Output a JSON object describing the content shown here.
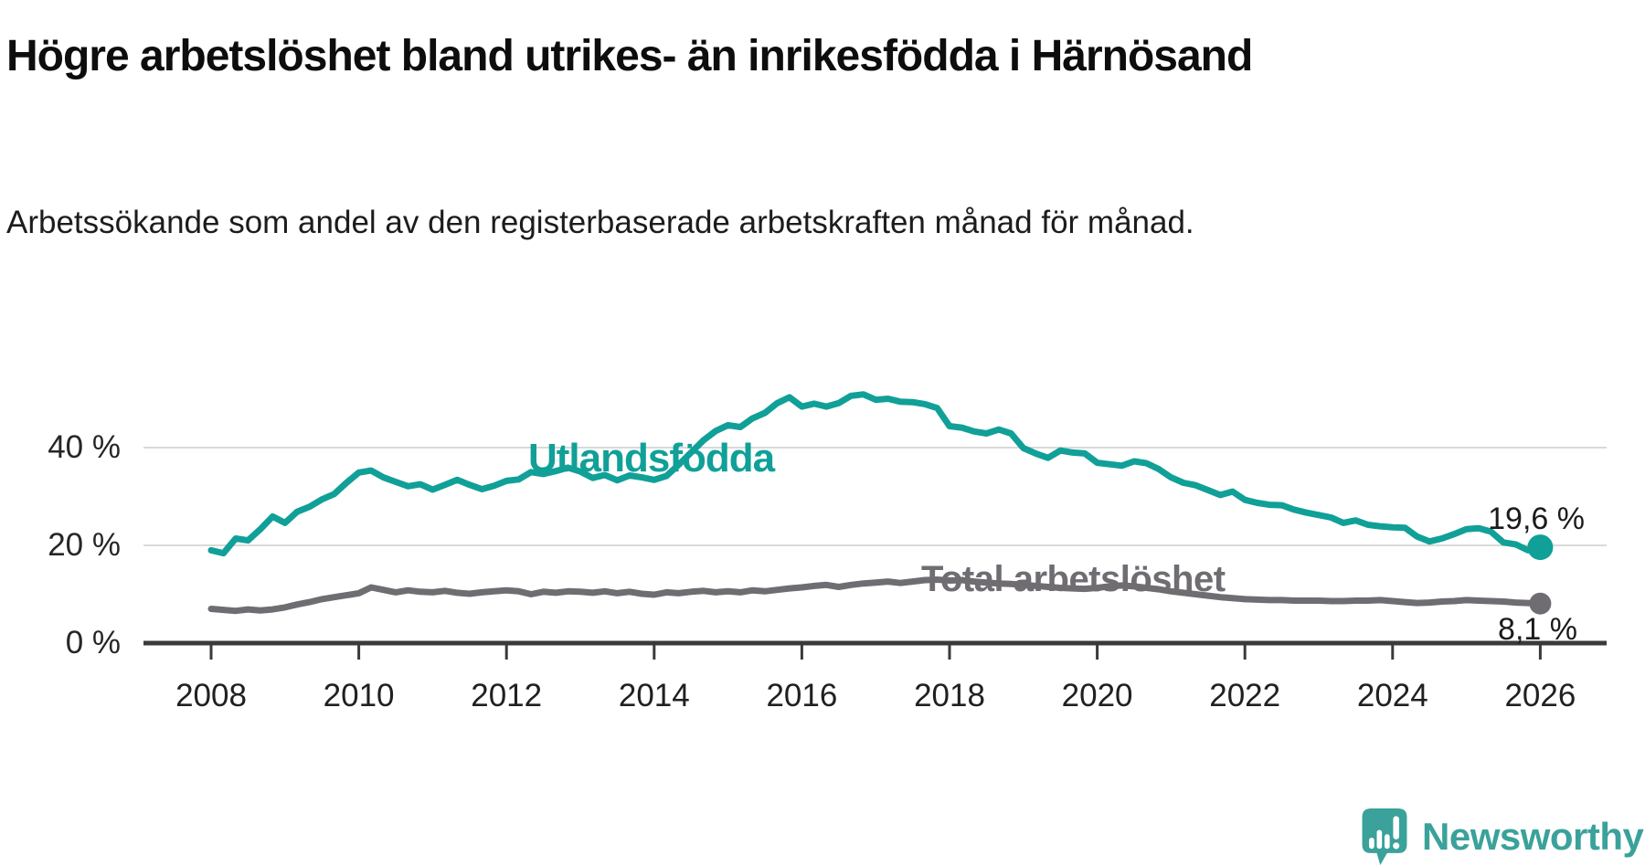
{
  "header": {
    "title": "Högre arbetslöshet bland utrikes- än inrikesfödda i Härnösand",
    "subtitle": "Arbetssökande som andel av den registerbaserade arbetskraften månad för månad."
  },
  "chart_data": {
    "type": "line",
    "title": "Högre arbetslöshet bland utrikes- än inrikesfödda i Härnösand",
    "xlabel": "",
    "ylabel": "%",
    "xlim": [
      2008,
      2026
    ],
    "ylim": [
      0,
      55
    ],
    "grid": true,
    "legend_position": "inline-labels-on-chart",
    "x_start_year": 2008,
    "x_step_years": 0.1666667,
    "x_axis": {
      "tick_years": [
        2008,
        2010,
        2012,
        2014,
        2016,
        2018,
        2020,
        2022,
        2024,
        2026
      ],
      "tick_labels": [
        "2008",
        "2010",
        "2012",
        "2014",
        "2016",
        "2018",
        "2020",
        "2022",
        "2024",
        "2026"
      ]
    },
    "y_axis": {
      "ticks": [
        {
          "value": 0,
          "label": "0 %"
        },
        {
          "value": 20,
          "label": "20 %"
        },
        {
          "value": 40,
          "label": "40 %"
        }
      ],
      "unit": "%"
    },
    "series": [
      {
        "name": "Utlandsfödda",
        "color": "#10a098",
        "end_label": "19,6 %",
        "end_value": 19.6,
        "values": [
          19,
          18.4,
          21.4,
          21,
          23.3,
          25.9,
          24.6,
          26.9,
          27.9,
          29.4,
          30.5,
          32.8,
          34.9,
          35.3,
          33.9,
          33,
          32.1,
          32.5,
          31.4,
          32.4,
          33.4,
          32.4,
          31.5,
          32.2,
          33.2,
          33.5,
          35,
          34.6,
          35.2,
          35.9,
          35.1,
          33.8,
          34.4,
          33.3,
          34.3,
          33.9,
          33.4,
          34.2,
          36.5,
          39,
          41.5,
          43.4,
          44.6,
          44.2,
          46,
          47.1,
          49.1,
          50.3,
          48.4,
          49,
          48.4,
          49.1,
          50.6,
          50.9,
          49.8,
          50,
          49.4,
          49.3,
          48.9,
          48.1,
          44.4,
          44.1,
          43.3,
          42.9,
          43.7,
          42.9,
          39.9,
          38.8,
          37.9,
          39.4,
          39,
          38.8,
          36.9,
          36.6,
          36.3,
          37.2,
          36.8,
          35.6,
          33.9,
          32.8,
          32.3,
          31.3,
          30.3,
          31,
          29.3,
          28.7,
          28.3,
          28.2,
          27.3,
          26.7,
          26.2,
          25.7,
          24.6,
          25.1,
          24.2,
          23.9,
          23.7,
          23.6,
          21.8,
          20.8,
          21.4,
          22.3,
          23.3,
          23.5,
          22.8,
          20.6,
          20.2,
          19,
          19.6
        ]
      },
      {
        "name": "Total arbetslöshet",
        "color": "#706d72",
        "end_label": "8,1 %",
        "end_value": 8.1,
        "values": [
          7,
          6.8,
          6.6,
          6.9,
          6.7,
          6.9,
          7.3,
          7.9,
          8.4,
          9,
          9.4,
          9.8,
          10.2,
          11.4,
          10.9,
          10.4,
          10.8,
          10.5,
          10.4,
          10.7,
          10.3,
          10.1,
          10.4,
          10.6,
          10.8,
          10.6,
          10,
          10.5,
          10.3,
          10.6,
          10.5,
          10.3,
          10.6,
          10.2,
          10.5,
          10.1,
          9.9,
          10.4,
          10.2,
          10.5,
          10.7,
          10.4,
          10.6,
          10.4,
          10.8,
          10.6,
          10.9,
          11.2,
          11.4,
          11.7,
          11.9,
          11.5,
          11.9,
          12.2,
          12.4,
          12.6,
          12.3,
          12.6,
          12.9,
          13,
          12.8,
          12.9,
          12.6,
          12.4,
          12.2,
          12.1,
          11.9,
          11.7,
          11.5,
          11.3,
          11.2,
          11.1,
          11.3,
          11.6,
          11.8,
          11.6,
          11.3,
          11,
          10.6,
          10.3,
          10,
          9.7,
          9.4,
          9.2,
          9,
          8.9,
          8.8,
          8.8,
          8.7,
          8.7,
          8.7,
          8.6,
          8.6,
          8.7,
          8.7,
          8.8,
          8.6,
          8.4,
          8.2,
          8.3,
          8.5,
          8.6,
          8.8,
          8.7,
          8.6,
          8.5,
          8.3,
          8.2,
          8.1
        ]
      }
    ]
  },
  "colors": {
    "accent_teal": "#10a098",
    "line_gray": "#706d72",
    "grid": "#d9d9d9",
    "axis": "#3a3a3a",
    "text": "#1b1b1b"
  },
  "footer": {
    "brand": "Newsworthy"
  }
}
